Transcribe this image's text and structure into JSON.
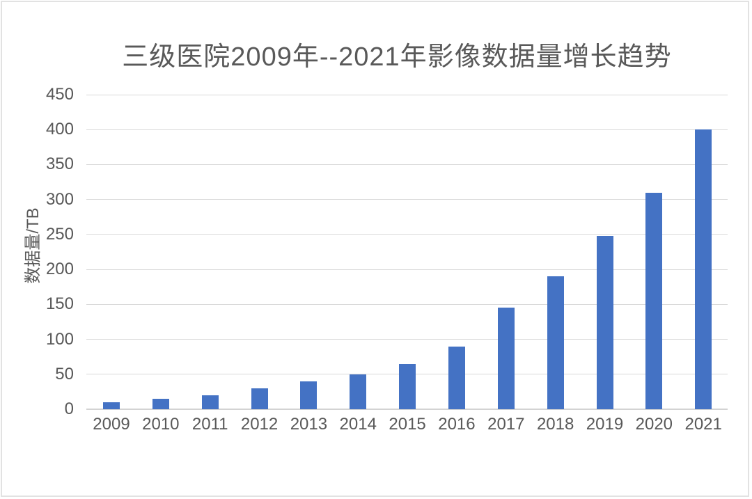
{
  "chart_data": {
    "type": "bar",
    "title": "三级医院2009年--2021年影像数据量增长趋势",
    "xlabel": "",
    "ylabel": "数据量/TB",
    "categories": [
      "2009",
      "2010",
      "2011",
      "2012",
      "2013",
      "2014",
      "2015",
      "2016",
      "2017",
      "2018",
      "2019",
      "2020",
      "2021"
    ],
    "values": [
      10,
      15,
      20,
      30,
      40,
      50,
      65,
      90,
      145,
      190,
      248,
      310,
      400
    ],
    "ylim": [
      0,
      450
    ],
    "ystep": 50,
    "grid": true,
    "legend": false,
    "colors": {
      "bar": "#4472C4",
      "text": "#595959",
      "gridline": "#D9D9D9",
      "axis_line": "#D3D3D3",
      "frame_border": "#E2E2E2",
      "background": "#FFFFFF"
    }
  }
}
